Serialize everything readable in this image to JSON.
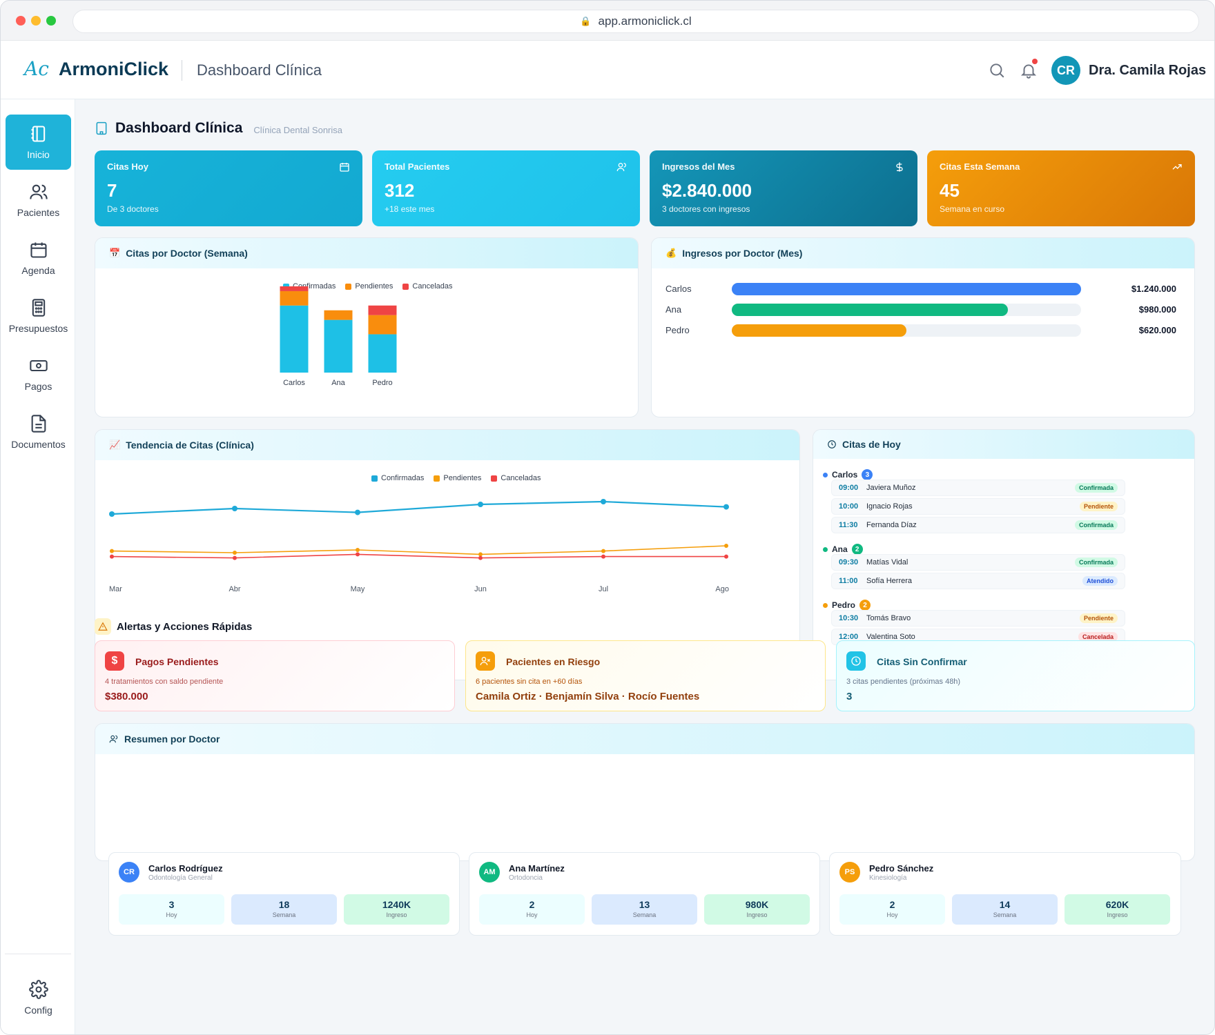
{
  "browser": {
    "url": "app.armoniclick.cl"
  },
  "header": {
    "brand": "ArmoniClick",
    "section": "Dashboard Clínica",
    "user_initials": "CR",
    "user_name": "Dra. Camila Rojas"
  },
  "sidebar": {
    "items": [
      {
        "label": "Inicio",
        "icon": "notebook-icon"
      },
      {
        "label": "Pacientes",
        "icon": "users-icon"
      },
      {
        "label": "Agenda",
        "icon": "calendar-icon"
      },
      {
        "label": "Presupuestos",
        "icon": "calculator-icon"
      },
      {
        "label": "Pagos",
        "icon": "banknote-icon"
      },
      {
        "label": "Documentos",
        "icon": "document-icon"
      }
    ],
    "config_label": "Config"
  },
  "page": {
    "title": "Dashboard Clínica",
    "subtitle": "Clínica Dental Sonrisa"
  },
  "kpis": [
    {
      "label": "Citas Hoy",
      "value": "7",
      "sub": "De 3 doctores",
      "icon": "calendar-icon",
      "color": "#17b3d9"
    },
    {
      "label": "Total Pacientes",
      "value": "312",
      "sub": "+18 este mes",
      "icon": "users-icon",
      "color": "#22c7ee"
    },
    {
      "label": "Ingresos del Mes",
      "value": "$2.840.000",
      "sub": "3 doctores con ingresos",
      "icon": "dollar-icon",
      "color": "#0f7fa1"
    },
    {
      "label": "Citas Esta Semana",
      "value": "45",
      "sub": "Semana en curso",
      "icon": "trending-up-icon",
      "color": "#ee8f0b"
    }
  ],
  "citas_por_doctor": {
    "title": "Citas por Doctor (Semana)"
  },
  "ingresos_por_doctor": {
    "title": "Ingresos por Doctor (Mes)",
    "rows": [
      {
        "name": "Carlos",
        "value": "$1.240.000",
        "fraction": 1.0,
        "color": "#3b82f6"
      },
      {
        "name": "Ana",
        "value": "$980.000",
        "fraction": 0.79,
        "color": "#10b981"
      },
      {
        "name": "Pedro",
        "value": "$620.000",
        "fraction": 0.5,
        "color": "#f59e0b"
      }
    ]
  },
  "tendencia": {
    "title": "Tendencia de Citas (Clínica)"
  },
  "chart_data": [
    {
      "type": "bar",
      "stacked": true,
      "categories": [
        "Carlos",
        "Ana",
        "Pedro"
      ],
      "series": [
        {
          "name": "Confirmadas",
          "values": [
            14,
            11,
            8
          ],
          "color": "#1ec0e6"
        },
        {
          "name": "Pendientes",
          "values": [
            3,
            2,
            4
          ],
          "color": "#f98d0d"
        },
        {
          "name": "Canceladas",
          "values": [
            1,
            0,
            2
          ],
          "color": "#ef4444"
        }
      ],
      "ylim": [
        0,
        18
      ],
      "legend": "top"
    },
    {
      "type": "line",
      "x": [
        "Mar",
        "Abr",
        "May",
        "Jun",
        "Jul",
        "Ago"
      ],
      "series": [
        {
          "name": "Confirmadas",
          "values": [
            38,
            40,
            38.6,
            41.5,
            42.5,
            40.6
          ],
          "color": "#1ea9d8"
        },
        {
          "name": "Pendientes",
          "values": [
            24.6,
            24,
            25,
            23.4,
            24.6,
            26.5
          ],
          "color": "#f59e0b"
        },
        {
          "name": "Canceladas",
          "values": [
            22.6,
            22.1,
            23.4,
            22.1,
            22.6,
            22.6
          ],
          "color": "#ef4444"
        }
      ],
      "ylim": [
        10,
        50
      ],
      "legend": "top"
    }
  ],
  "citas_hoy": {
    "title": "Citas de Hoy",
    "groups": [
      {
        "doctor": "Carlos",
        "count": "3",
        "color": "#3b82f6",
        "appts": [
          {
            "time": "09:00",
            "patient": "Javiera Muñoz",
            "status": "Confirmada"
          },
          {
            "time": "10:00",
            "patient": "Ignacio Rojas",
            "status": "Pendiente"
          },
          {
            "time": "11:30",
            "patient": "Fernanda Díaz",
            "status": "Confirmada"
          }
        ]
      },
      {
        "doctor": "Ana",
        "count": "2",
        "color": "#10b981",
        "appts": [
          {
            "time": "09:30",
            "patient": "Matías Vidal",
            "status": "Confirmada"
          },
          {
            "time": "11:00",
            "patient": "Sofía Herrera",
            "status": "Atendido"
          }
        ]
      },
      {
        "doctor": "Pedro",
        "count": "2",
        "color": "#f59e0b",
        "appts": [
          {
            "time": "10:30",
            "patient": "Tomás Bravo",
            "status": "Pendiente"
          },
          {
            "time": "12:00",
            "patient": "Valentina Soto",
            "status": "Cancelada"
          }
        ]
      }
    ]
  },
  "alerts": {
    "title": "Alertas y Acciones Rápidas",
    "items": [
      {
        "title": "Pagos Pendientes",
        "desc": "4 tratamientos con saldo pendiente",
        "value": "$380.000",
        "icon": "dollar-icon"
      },
      {
        "title": "Pacientes en Riesgo",
        "desc": "6 pacientes sin cita en +60 días",
        "value": "Camila Ortiz · Benjamín Silva · Rocío Fuentes",
        "icon": "user-x-icon"
      },
      {
        "title": "Citas Sin Confirmar",
        "desc": "3 citas pendientes (próximas 48h)",
        "value": "3",
        "icon": "clock-icon"
      }
    ]
  },
  "resumen": {
    "title": "Resumen por Doctor",
    "doctors": [
      {
        "initials": "CR",
        "name": "Carlos Rodríguez",
        "spec": "Odontología General",
        "color": "#3b82f6",
        "hoy": "3",
        "semana": "18",
        "ingreso": "1240K"
      },
      {
        "initials": "AM",
        "name": "Ana Martínez",
        "spec": "Ortodoncia",
        "color": "#10b981",
        "hoy": "2",
        "semana": "13",
        "ingreso": "980K"
      },
      {
        "initials": "PS",
        "name": "Pedro Sánchez",
        "spec": "Kinesiología",
        "color": "#f59e0b",
        "hoy": "2",
        "semana": "14",
        "ingreso": "620K"
      }
    ],
    "labels": {
      "hoy": "Hoy",
      "semana": "Semana",
      "ingreso": "Ingreso"
    }
  }
}
